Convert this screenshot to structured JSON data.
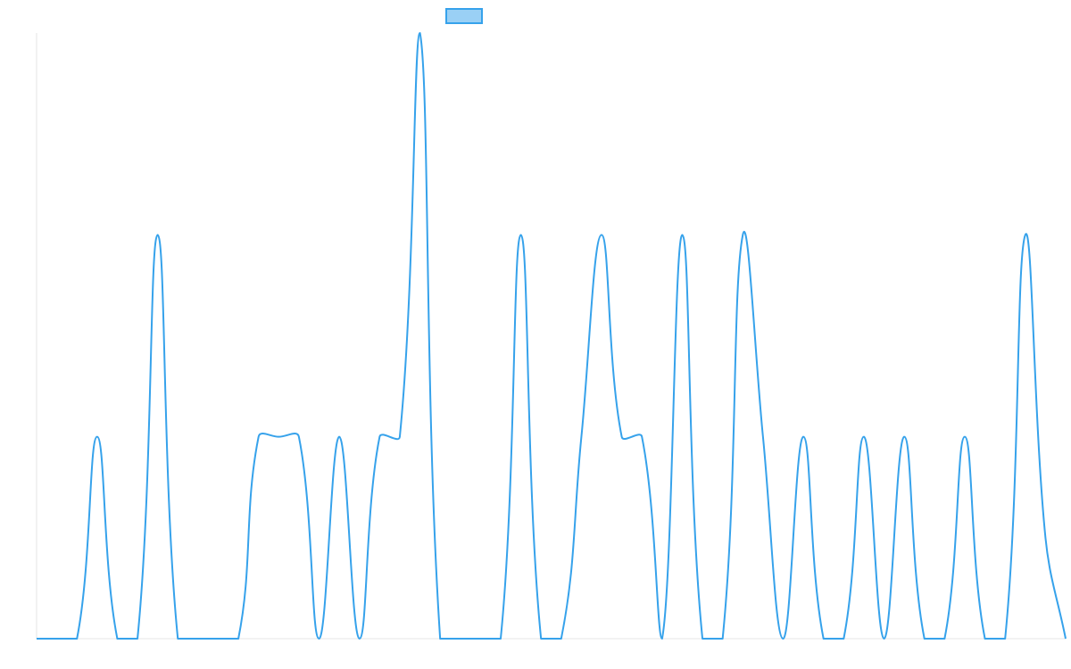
{
  "chart_data": {
    "type": "line",
    "title": "",
    "xlabel": "",
    "ylabel": "",
    "grid": false,
    "legend": {
      "position": "top-center"
    },
    "ylim": [
      0,
      3
    ],
    "x": [
      0,
      1,
      2,
      3,
      4,
      5,
      6,
      7,
      8,
      9,
      10,
      11,
      12,
      13,
      14,
      15,
      16,
      17,
      18,
      19,
      20,
      21,
      22,
      23,
      24,
      25,
      26,
      27,
      28,
      29,
      30,
      31,
      32,
      33,
      34,
      35,
      36,
      37,
      38,
      39,
      40,
      41,
      42,
      43,
      44,
      45,
      46,
      47,
      48,
      49,
      50,
      51
    ],
    "series": [
      {
        "color": "#36a2eb",
        "fill": "#9ad0f5",
        "values": [
          0,
          0,
          0,
          1,
          0,
          0,
          2,
          0,
          0,
          0,
          0,
          1,
          1,
          1,
          0,
          1,
          0,
          1,
          1,
          3,
          0,
          0,
          0,
          0,
          2,
          0,
          0,
          1,
          2,
          1,
          1,
          0,
          2,
          0,
          0,
          2,
          1,
          0,
          1,
          0,
          0,
          1,
          0,
          1,
          0,
          0,
          1,
          0,
          0,
          2,
          0.5,
          0
        ]
      }
    ]
  }
}
